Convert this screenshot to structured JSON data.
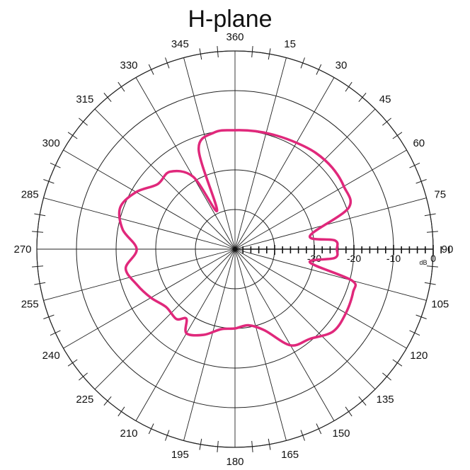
{
  "chart_data": {
    "type": "polar",
    "title": "H-plane",
    "angle_unit": "deg",
    "angle_direction": "clockwise",
    "angle_zero": "top",
    "angle_ticks": [
      0,
      15,
      30,
      45,
      60,
      75,
      90,
      105,
      120,
      135,
      150,
      165,
      180,
      195,
      210,
      225,
      240,
      255,
      270,
      285,
      300,
      315,
      330,
      345
    ],
    "angle_tick_labels": [
      "360",
      "15",
      "30",
      "45",
      "60",
      "75",
      "90",
      "105",
      "120",
      "135",
      "150",
      "165",
      "180",
      "195",
      "210",
      "225",
      "240",
      "255",
      "270",
      "285",
      "300",
      "315",
      "330",
      "345"
    ],
    "radial_unit_label": "dB",
    "radial_range": [
      -50,
      5
    ],
    "radial_rings": [
      -40,
      -30,
      -20,
      -10,
      0
    ],
    "radial_tick_labels": [
      "-30",
      "-20",
      "-10",
      "0"
    ],
    "radial_tick_values": [
      -30,
      -20,
      -10,
      0
    ],
    "grid": true,
    "series": [
      {
        "color": "#e0287b",
        "theta": [
          0,
          10,
          20,
          30,
          40,
          50,
          60,
          70,
          80,
          85,
          90,
          95,
          100,
          105,
          110,
          120,
          130,
          140,
          150,
          160,
          170,
          180,
          190,
          200,
          210,
          215,
          220,
          230,
          240,
          250,
          260,
          270,
          280,
          290,
          300,
          310,
          320,
          330,
          335,
          340,
          350,
          360
        ],
        "r": [
          -20,
          -19.8,
          -19.5,
          -19,
          -18.3,
          -18,
          -18.3,
          -19.5,
          -30.8,
          -24.7,
          -24.3,
          -24.7,
          -30.8,
          -19.5,
          -18.3,
          -17.7,
          -17.7,
          -20.5,
          -22,
          -28.2,
          -30.5,
          -30,
          -29.5,
          -27,
          -25.5,
          -28.6,
          -27,
          -27.3,
          -25.5,
          -23.7,
          -22,
          -25.2,
          -21.2,
          -19.2,
          -21.2,
          -24.5,
          -24.5,
          -28.9,
          -39.3,
          -23.2,
          -20.1,
          -20
        ]
      }
    ]
  }
}
